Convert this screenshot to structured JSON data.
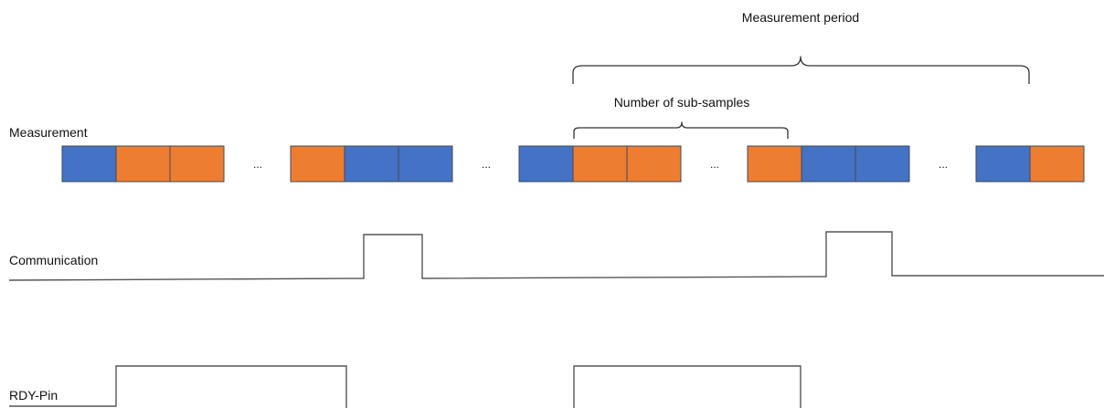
{
  "labels": {
    "measurement": "Measurement",
    "communication": "Communication",
    "rdy_pin": "RDY-Pin",
    "measurement_period": "Measurement period",
    "number_of_sub_samples": "Number of sub-samples"
  },
  "ellipsis": "...",
  "colors": {
    "blue": "#4472C4",
    "orange": "#ED7D31"
  },
  "sample_groups": [
    [
      "blue",
      "orange",
      "orange"
    ],
    [
      "orange",
      "blue",
      "blue"
    ],
    [
      "blue",
      "orange",
      "orange"
    ],
    [
      "orange",
      "blue",
      "blue"
    ],
    [
      "blue",
      "orange"
    ]
  ]
}
